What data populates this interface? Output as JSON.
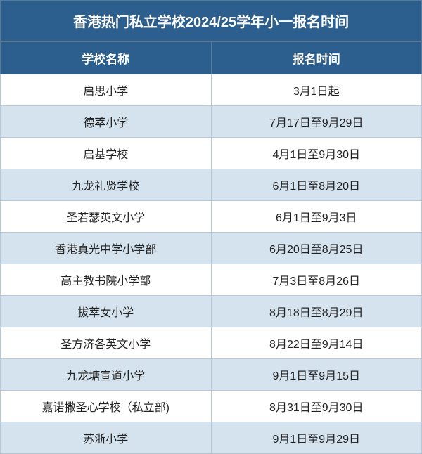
{
  "title": "香港热门私立学校2024/25学年小一报名时间",
  "columns": [
    "学校名称",
    "报名时间"
  ],
  "rows": [
    [
      "启思小学",
      "3月1日起"
    ],
    [
      "德萃小学",
      "7月17日至9月29日"
    ],
    [
      "启基学校",
      "4月1日至9月30日"
    ],
    [
      "九龙礼贤学校",
      "6月1日至8月20日"
    ],
    [
      "圣若瑟英文小学",
      "6月1日至9月3日"
    ],
    [
      "香港真光中学小学部",
      "6月20日至8月25日"
    ],
    [
      "高主教书院小学部",
      "7月3日至8月26日"
    ],
    [
      "拔萃女小学",
      "8月18日至8月29日"
    ],
    [
      "圣方济各英文小学",
      "8月22日至9月14日"
    ],
    [
      "九龙塘宣道小学",
      "9月1日至9月15日"
    ],
    [
      "嘉诺撒圣心学校（私立部)",
      "8月31日至9月30日"
    ],
    [
      "苏浙小学",
      "9月1日至9月29日"
    ]
  ],
  "styling": {
    "title_bg": "#2c5f8d",
    "title_color": "#ffffff",
    "title_fontsize": 20,
    "header_bg": "#2c5f8d",
    "header_color": "#ffffff",
    "header_fontsize": 17,
    "cell_fontsize": 16,
    "row_odd_bg": "#ffffff",
    "row_even_bg": "#d5e3ef",
    "border_color": "#b8c8d8",
    "header_border_color": "#5a7a95",
    "text_color": "#222222",
    "column_widths": [
      "50%",
      "50%"
    ]
  }
}
